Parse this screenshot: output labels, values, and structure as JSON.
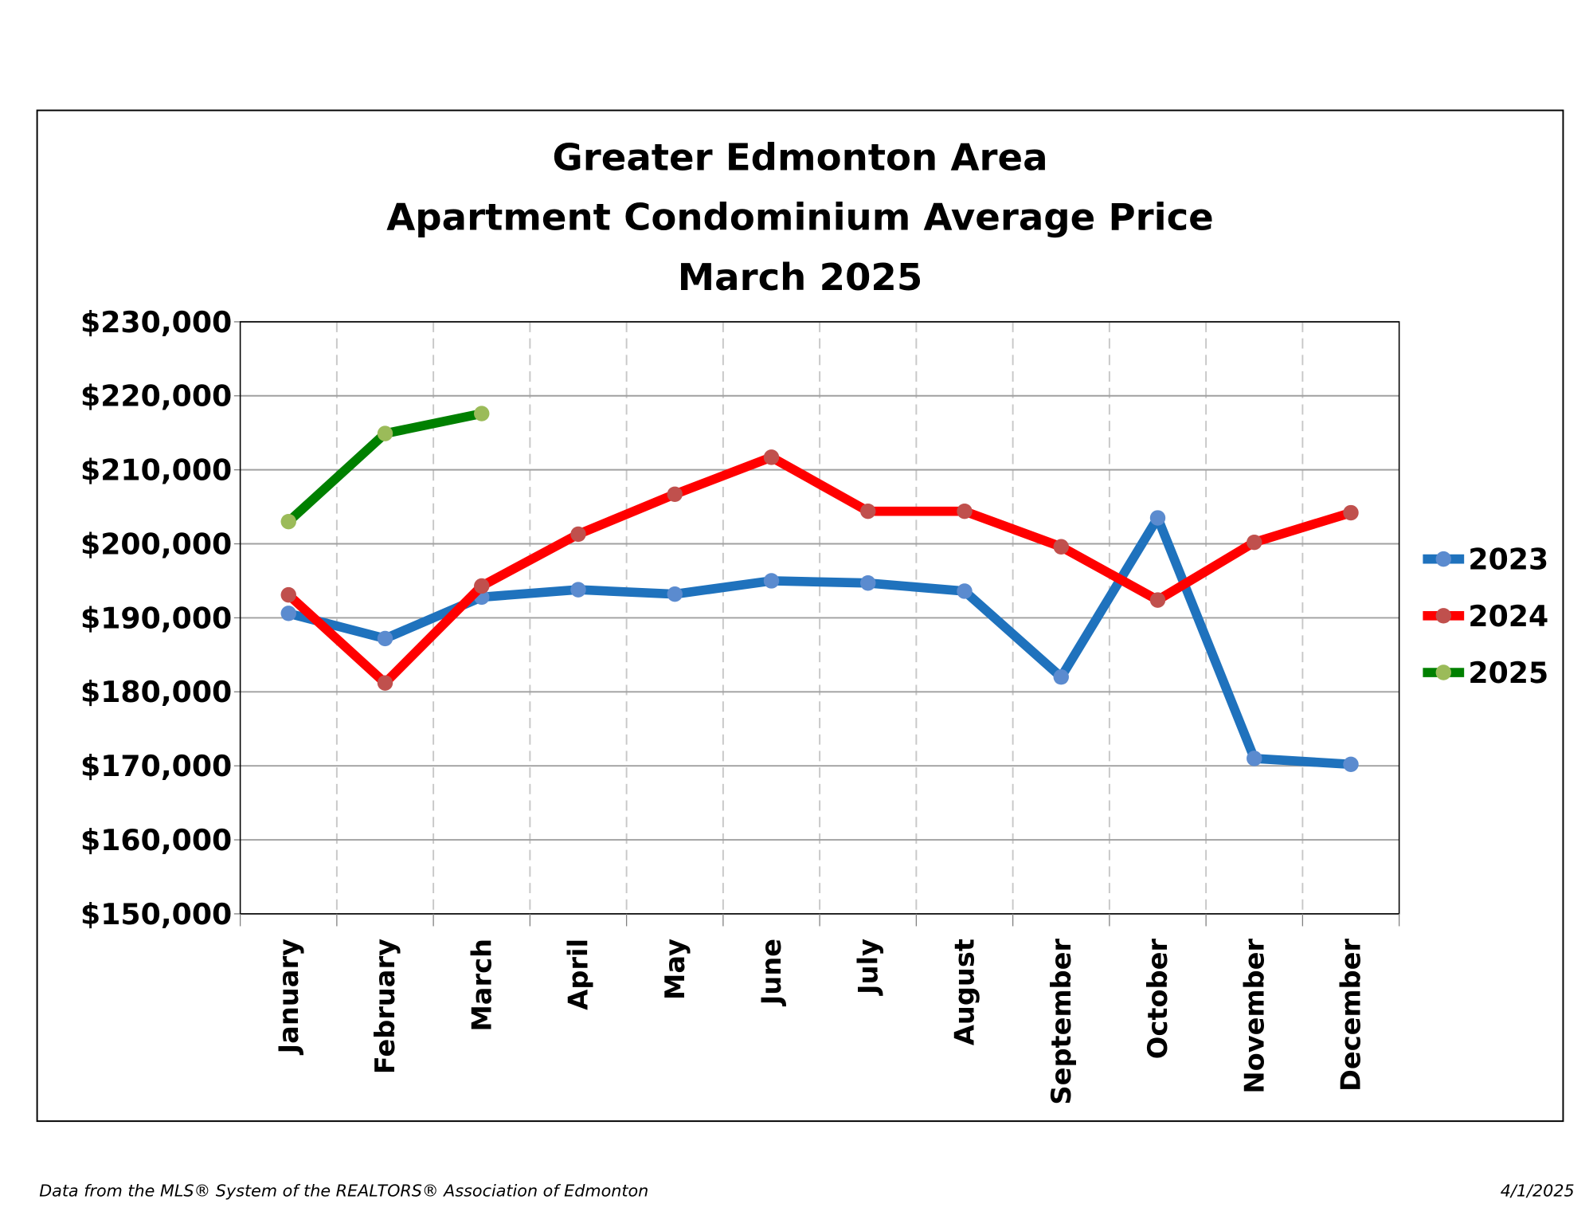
{
  "chart_data": {
    "type": "line",
    "title": [
      "Greater Edmonton Area",
      "Apartment Condominium Average Price",
      "March 2025"
    ],
    "categories": [
      "January",
      "February",
      "March",
      "April",
      "May",
      "June",
      "July",
      "August",
      "September",
      "October",
      "November",
      "December"
    ],
    "series": [
      {
        "name": "2023",
        "color": "#1f72bd",
        "marker_color": "#5b8bcf",
        "values": [
          190600,
          187200,
          192800,
          193800,
          193200,
          195000,
          194700,
          193600,
          182000,
          203500,
          171000,
          170200
        ]
      },
      {
        "name": "2024",
        "color": "#ff0000",
        "marker_color": "#c0504d",
        "values": [
          193100,
          181200,
          194300,
          201300,
          206700,
          211700,
          204400,
          204400,
          199600,
          192400,
          200200,
          204200
        ]
      },
      {
        "name": "2025",
        "color": "#008000",
        "marker_color": "#9bbb59",
        "values": [
          203000,
          214900,
          217600,
          null,
          null,
          null,
          null,
          null,
          null,
          null,
          null,
          null
        ]
      }
    ],
    "ylim": [
      150000,
      230000
    ],
    "yticks": [
      {
        "value": 150000,
        "label": "$150,000"
      },
      {
        "value": 160000,
        "label": "$160,000"
      },
      {
        "value": 170000,
        "label": "$170,000"
      },
      {
        "value": 180000,
        "label": "$180,000"
      },
      {
        "value": 190000,
        "label": "$190,000"
      },
      {
        "value": 200000,
        "label": "$200,000"
      },
      {
        "value": 210000,
        "label": "$210,000"
      },
      {
        "value": 220000,
        "label": "$220,000"
      },
      {
        "value": 230000,
        "label": "$230,000"
      }
    ],
    "grid": true,
    "legend": "right"
  },
  "source": "Data from the MLS® System of the REALTORS® Association of Edmonton",
  "date": "4/1/2025"
}
